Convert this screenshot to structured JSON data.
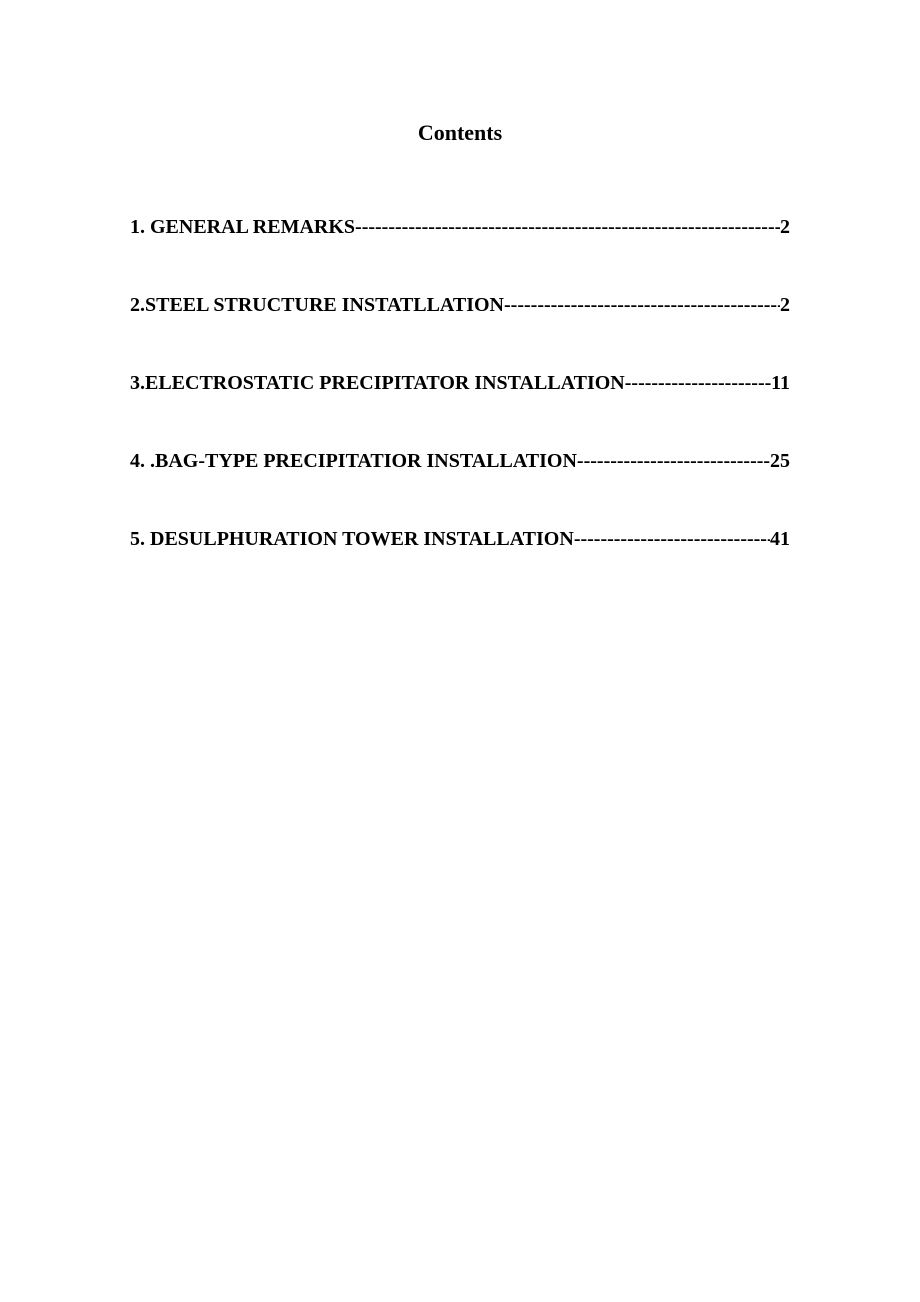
{
  "title": "Contents",
  "title_fontsize": 22,
  "entry_fontsize": 20,
  "text_color": "#000000",
  "background_color": "#ffffff",
  "font_family": "Times New Roman",
  "font_weight": "bold",
  "entry_spacing": 55,
  "entries": [
    {
      "label": "1.  GENERAL REMARKS",
      "page": "2"
    },
    {
      "label": "2.STEEL STRUCTURE INSTATLLATION ",
      "page": "2"
    },
    {
      "label": "3.ELECTROSTATIC PRECIPITATOR INSTALLATION",
      "page": "11"
    },
    {
      "label": "4. .BAG-TYPE PRECIPITATIOR INSTALLATION",
      "page": "25"
    },
    {
      "label": "5.  DESULPHURATION TOWER INSTALLATION",
      "page": "41"
    }
  ]
}
